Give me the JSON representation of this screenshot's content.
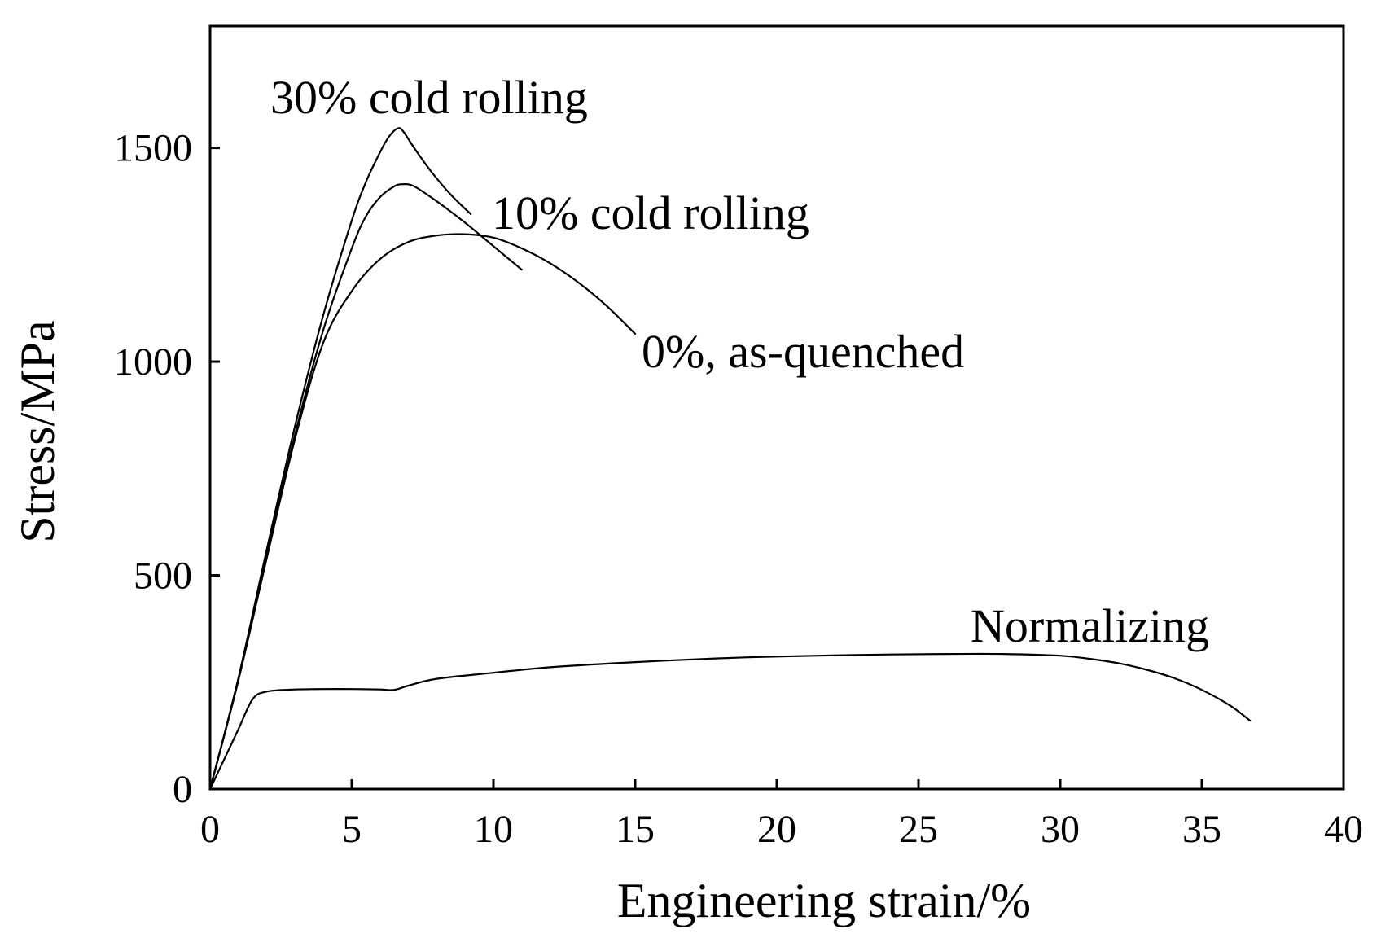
{
  "chart_data": {
    "type": "line",
    "title": "",
    "xlabel": "Engineering strain/%",
    "ylabel": "Stress/MPa",
    "xlim": [
      0,
      40
    ],
    "ylim": [
      0,
      1785
    ],
    "x_ticks": [
      0,
      5,
      10,
      15,
      20,
      25,
      30,
      35,
      40
    ],
    "y_ticks": [
      0,
      500,
      1000,
      1500
    ],
    "x_tick_labels": [
      "0",
      "5",
      "10",
      "15",
      "20",
      "25",
      "30",
      "35",
      "40"
    ],
    "y_tick_labels": [
      "0",
      "500",
      "1000",
      "1500"
    ],
    "grid": false,
    "legend": "none",
    "series": [
      {
        "name": "30% cold rolling",
        "label": "30% cold rolling",
        "x": [
          0,
          1,
          2,
          3,
          4,
          5,
          5.5,
          6,
          6.3,
          6.6,
          6.8,
          7.2,
          7.8,
          8.5,
          9.2
        ],
        "y": [
          0,
          260,
          560,
          850,
          1110,
          1330,
          1420,
          1490,
          1525,
          1545,
          1540,
          1500,
          1445,
          1390,
          1345
        ]
      },
      {
        "name": "10% cold rolling",
        "label": "10% cold rolling",
        "x": [
          0,
          1,
          2,
          3,
          4,
          5,
          5.5,
          6,
          6.5,
          6.8,
          7.2,
          8,
          9,
          10,
          11
        ],
        "y": [
          0,
          255,
          545,
          830,
          1075,
          1265,
          1340,
          1385,
          1410,
          1415,
          1410,
          1375,
          1325,
          1270,
          1215
        ]
      },
      {
        "name": "0%, as-quenched",
        "label": "0%, as-quenched",
        "x": [
          0,
          1,
          2,
          3,
          4,
          5,
          6,
          7,
          8,
          9,
          10,
          11,
          12,
          13,
          14,
          15
        ],
        "y": [
          0,
          255,
          540,
          820,
          1045,
          1165,
          1240,
          1280,
          1295,
          1298,
          1290,
          1265,
          1230,
          1185,
          1130,
          1065
        ]
      },
      {
        "name": "Normalizing",
        "label": "Normalizing",
        "x": [
          0,
          0.5,
          1,
          1.5,
          2,
          3,
          4,
          5,
          6,
          6.5,
          7,
          8,
          10,
          12,
          15,
          18,
          20,
          23,
          26,
          28,
          30,
          31,
          32,
          33,
          34,
          35,
          36,
          36.7
        ],
        "y": [
          0,
          70,
          140,
          210,
          228,
          233,
          234,
          234,
          233,
          232,
          242,
          258,
          272,
          285,
          297,
          306,
          310,
          314,
          316,
          316,
          312,
          305,
          295,
          280,
          260,
          232,
          195,
          160
        ]
      }
    ]
  }
}
